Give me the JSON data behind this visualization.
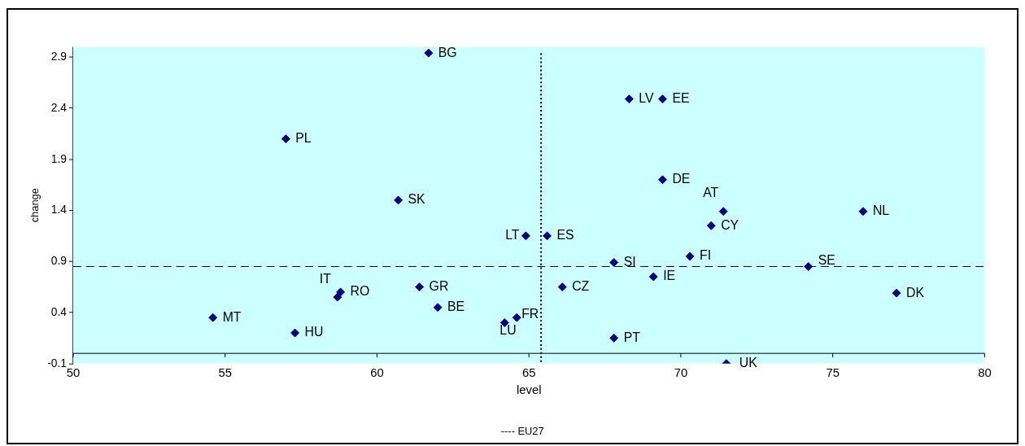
{
  "chart_data": {
    "type": "scatter",
    "xlabel": "level",
    "ylabel": "change",
    "color": "#000080",
    "marker": "diamond",
    "x": [
      61.7,
      57.0,
      60.7,
      58.7,
      58.8,
      61.4,
      62.0,
      54.6,
      57.3,
      64.2,
      64.9,
      65.6,
      68.3,
      69.4,
      69.4,
      71.4,
      76.0,
      71.0,
      70.3,
      67.8,
      74.2,
      69.1,
      66.1,
      77.1,
      64.6,
      67.8,
      71.5
    ],
    "values": [
      2.94,
      2.1,
      1.5,
      0.55,
      0.6,
      0.65,
      0.45,
      0.35,
      0.2,
      0.3,
      1.15,
      1.15,
      2.49,
      2.49,
      1.7,
      1.39,
      1.39,
      1.25,
      0.95,
      0.89,
      0.85,
      0.75,
      0.65,
      0.59,
      0.35,
      0.15,
      -0.1
    ],
    "value_labels": [
      "BG",
      "PL",
      "SK",
      "IT",
      "RO",
      "GR",
      "BE",
      "MT",
      "HU",
      "LU",
      "LT",
      "ES",
      "LV",
      "EE",
      "DE",
      "AT",
      "NL",
      "CY",
      "FI",
      "SI",
      "SE",
      "IE",
      "CZ",
      "DK",
      "FR",
      "PT",
      "UK"
    ],
    "xlim": [
      50,
      80
    ],
    "xticks": [
      50,
      55,
      60,
      65,
      70,
      75,
      80
    ],
    "ylim": [
      -0.1,
      3.0
    ],
    "yticks": [
      -0.1,
      0.4,
      0.9,
      1.4,
      1.9,
      2.4,
      2.9
    ],
    "ref_lines": [
      {
        "axis": "x",
        "value": 65.4,
        "color": "#000000",
        "line_style": "dotted"
      },
      {
        "axis": "y",
        "value": 0.85,
        "color": "#000000",
        "line_style": "dashed"
      }
    ],
    "annotations": [
      "---- EU27"
    ],
    "grid": false,
    "legend": false
  }
}
